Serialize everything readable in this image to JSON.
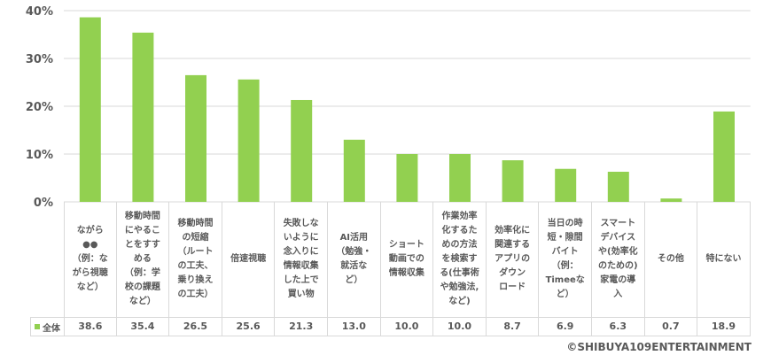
{
  "chart_data": {
    "type": "bar",
    "categories": [
      "ながら\n●●\n（例：な\nがら視聴\nなど）",
      "移動時間\nにやるこ\nとをすす\nめる\n（例：学\n校の課題\nなど）",
      "移動時間\nの短縮\n（ルート\nの工夫、\n乗り換え\nの工夫）",
      "倍速視聴",
      "失敗しな\nいように\n念入りに\n情報収集\nした上で\n買い物",
      "AI活用\n（勉強・\n就活な\nど）",
      "ショート\n動画での\n情報収集",
      "作業効率\n化するた\nめの方法\nを検索す\nる(仕事術\nや勉強法,\nなど)",
      "効率化に\n関連する\nアプリの\nダウン\nロード",
      "当日の時\n短・隙間\nバイト\n（例：\nTimeeな\nど）",
      "スマート\nデバイス\nや(効率化\nのための)\n家電の導\n入",
      "その他",
      "特にない"
    ],
    "series": [
      {
        "name": "全体",
        "color": "#92d050",
        "values": [
          38.6,
          35.4,
          26.5,
          25.6,
          21.3,
          13.0,
          10.0,
          10.0,
          8.7,
          6.9,
          6.3,
          0.7,
          18.9
        ]
      }
    ],
    "value_labels": [
      "38.6",
      "35.4",
      "26.5",
      "25.6",
      "21.3",
      "13.0",
      "10.0",
      "10.0",
      "8.7",
      "6.9",
      "6.3",
      "0.7",
      "18.9"
    ],
    "yticks": [
      "0%",
      "10%",
      "20%",
      "30%",
      "40%"
    ],
    "ylim": [
      0,
      40
    ],
    "grid": true,
    "legend_position": "data-table-left"
  },
  "copyright": "©SHIBUYA109ENTERTAINMENT"
}
